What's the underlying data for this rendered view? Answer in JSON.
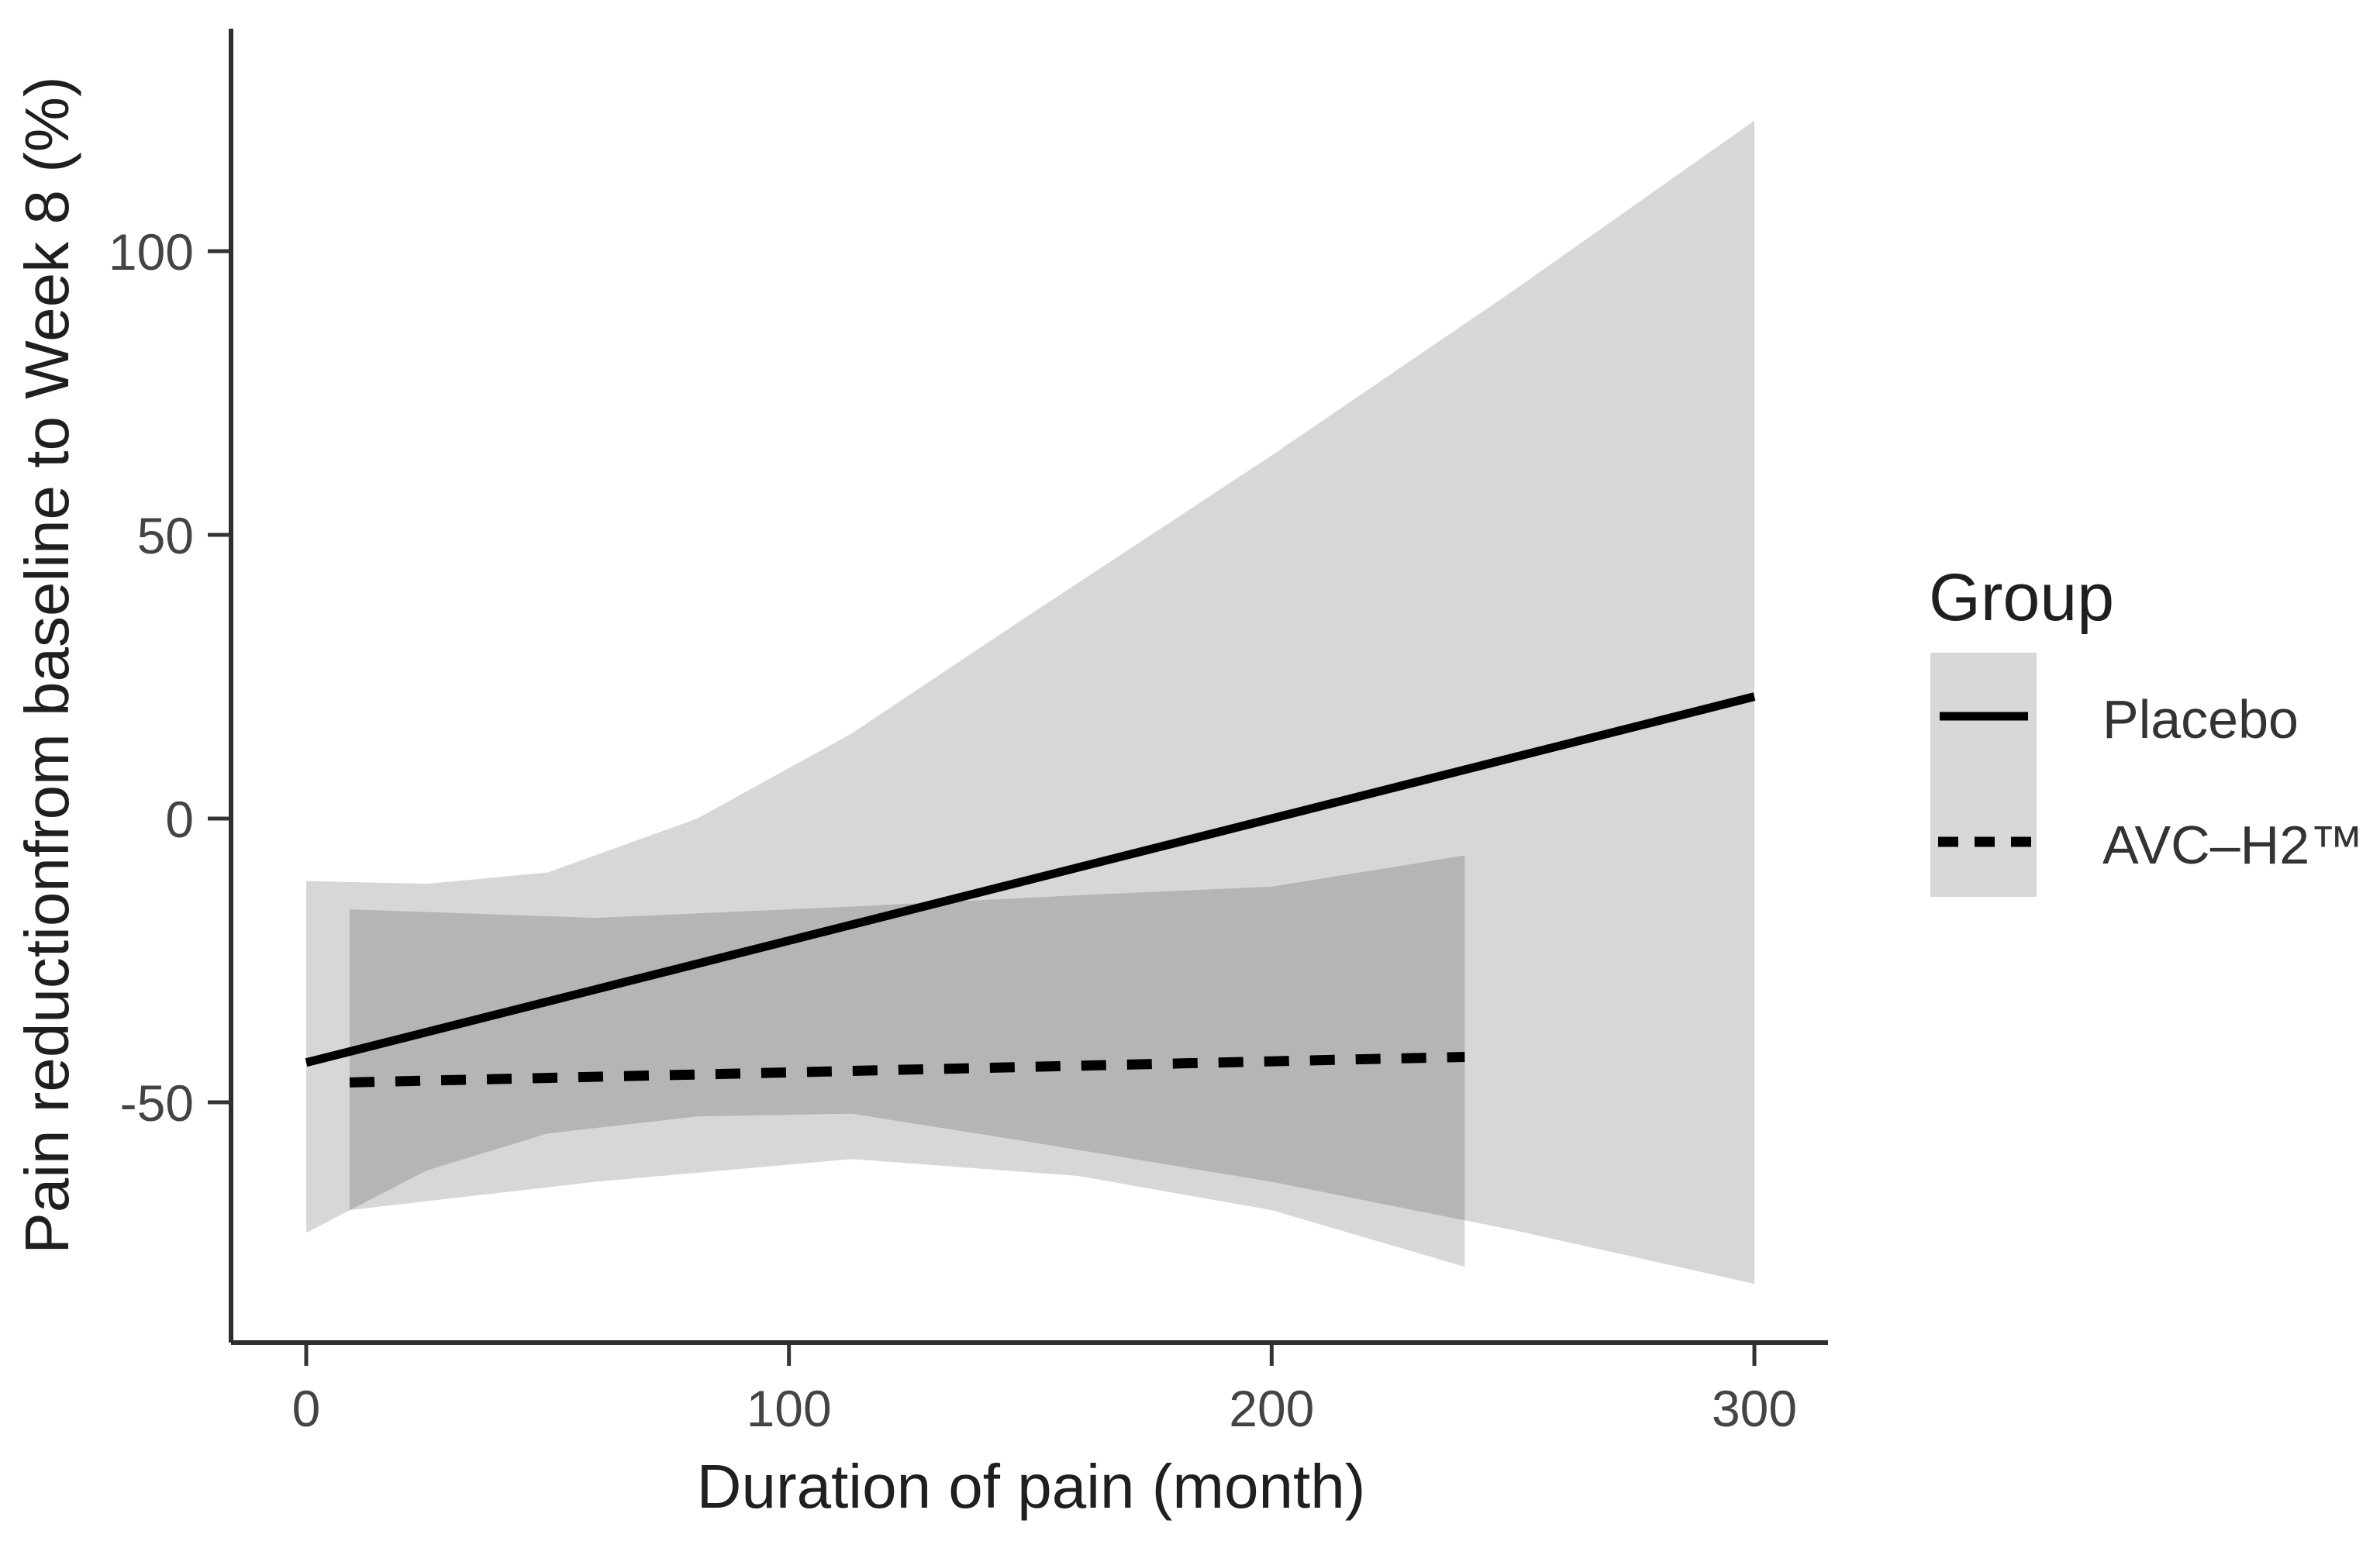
{
  "figure": {
    "legend_title": "Group",
    "legend": [
      {
        "label": "Placebo",
        "style": "solid"
      },
      {
        "label": "AVC–H2™",
        "style": "dashed"
      }
    ],
    "key_box_color": "#d8d8d8"
  },
  "chart_data": {
    "type": "line",
    "subtype": "regression-lines-with-confidence-ribbons",
    "title": "",
    "xlabel": "Duration of pain (month)",
    "ylabel": "Pain reductionfrom baseline to Week 8 (%)",
    "xlim": [
      -16,
      316
    ],
    "ylim": [
      -92,
      136
    ],
    "x_ticks": [
      0,
      100,
      200,
      300
    ],
    "y_ticks": [
      100,
      50,
      0,
      -50
    ],
    "grid": false,
    "legend_position": "right",
    "band_color": "rgba(0,0,0,0.155)",
    "line_color": "#000000",
    "series": [
      {
        "name": "Placebo",
        "style": "solid",
        "x": [
          0,
          300
        ],
        "y": [
          -43,
          21.5
        ],
        "ci": {
          "x": [
            0,
            25,
            50,
            81,
            113,
            150,
            200,
            250,
            300
          ],
          "upper": [
            -11,
            -11.5,
            -9.5,
            0,
            15,
            36,
            64,
            93,
            123
          ],
          "lower": [
            -73,
            -62,
            -55.5,
            -52.5,
            -52,
            -57,
            -64,
            -72.5,
            -82
          ]
        }
      },
      {
        "name": "AVC–H2™",
        "style": "dashed",
        "x": [
          9,
          240
        ],
        "y": [
          -46.5,
          -42
        ],
        "ci": {
          "x": [
            9,
            60,
            113,
            160,
            200,
            240
          ],
          "upper": [
            -16,
            -17.5,
            -15.5,
            -13.5,
            -12,
            -6.5
          ],
          "lower": [
            -69,
            -64,
            -60,
            -63,
            -69,
            -79
          ]
        }
      }
    ]
  }
}
